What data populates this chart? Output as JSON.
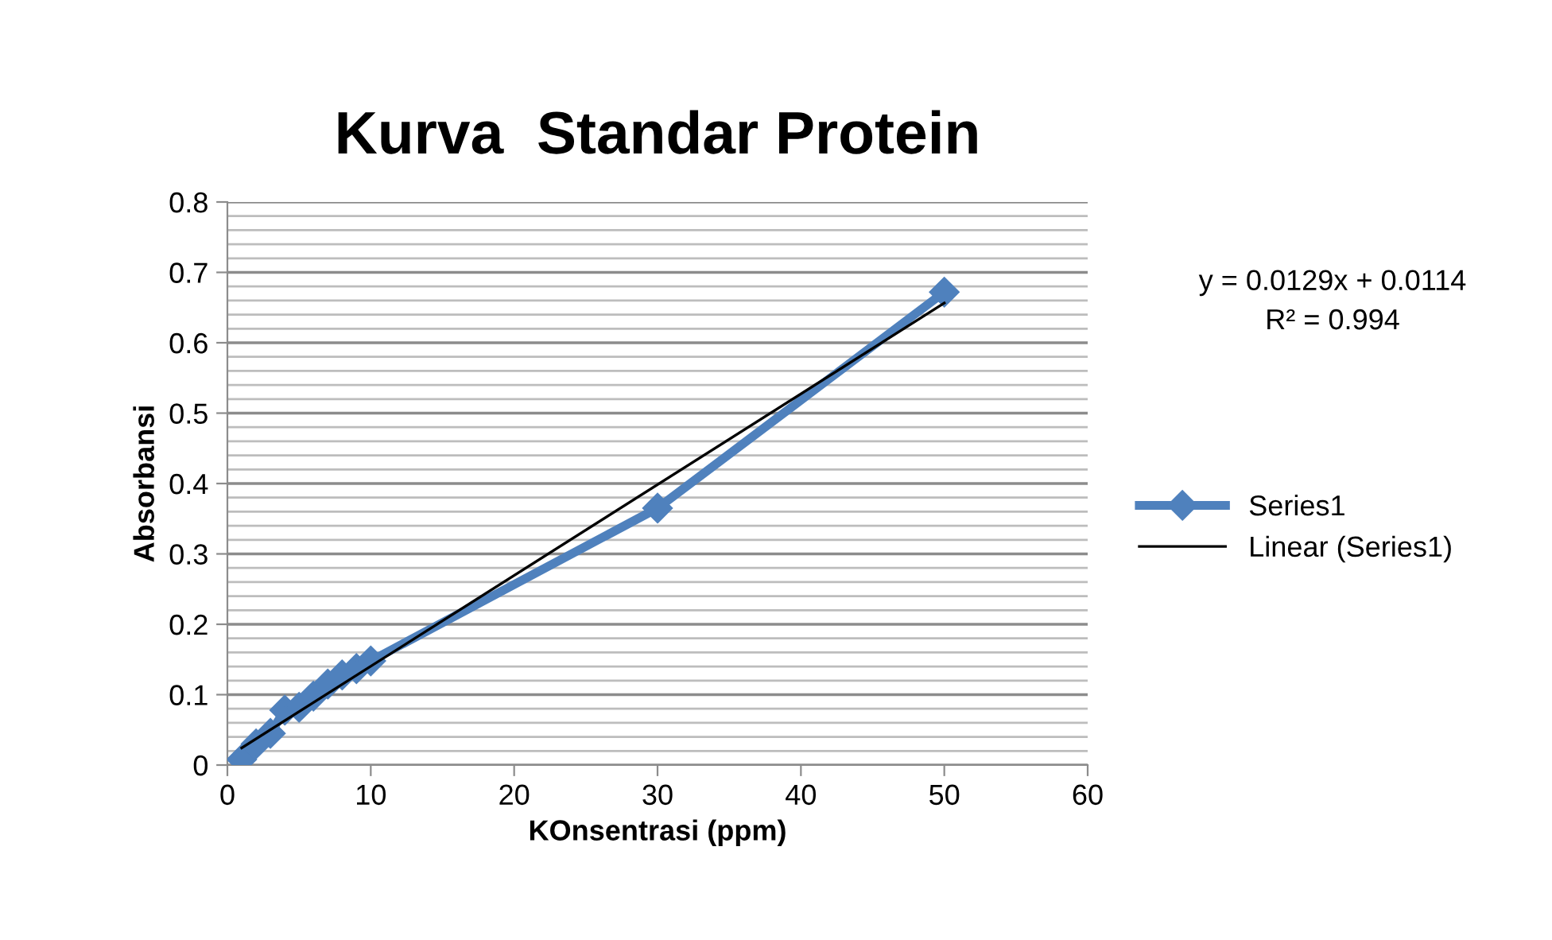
{
  "chart_data": {
    "type": "line",
    "title": "Kurva  Standar Protein",
    "xlabel": "KOnsentrasi (ppm)",
    "ylabel": "Absorbansi",
    "xlim": [
      0,
      60
    ],
    "xticks": [
      0,
      10,
      20,
      30,
      40,
      50,
      60
    ],
    "ylim": [
      0,
      0.8
    ],
    "yticks": [
      0,
      0.1,
      0.2,
      0.3,
      0.4,
      0.5,
      0.6,
      0.7,
      0.8
    ],
    "grid": "y",
    "legend": "right",
    "marker": "diamond",
    "line_style": "solid",
    "annotations": [
      "y = 0.0129x + 0.0114\nR² = 0.994"
    ],
    "series": [
      {
        "name": "Series1",
        "color": "#4f81bd",
        "x": [
          1,
          2,
          3,
          4,
          5,
          6,
          7,
          8,
          9,
          10,
          30,
          50
        ],
        "values": [
          0.008,
          0.03,
          0.045,
          0.078,
          0.082,
          0.098,
          0.115,
          0.128,
          0.137,
          0.148,
          0.365,
          0.672
        ]
      },
      {
        "name": "Linear (Series1)",
        "color": "#000000",
        "type": "line",
        "marker": "none",
        "x": [
          1,
          50
        ],
        "values": [
          0.0243,
          0.6564
        ]
      }
    ]
  }
}
